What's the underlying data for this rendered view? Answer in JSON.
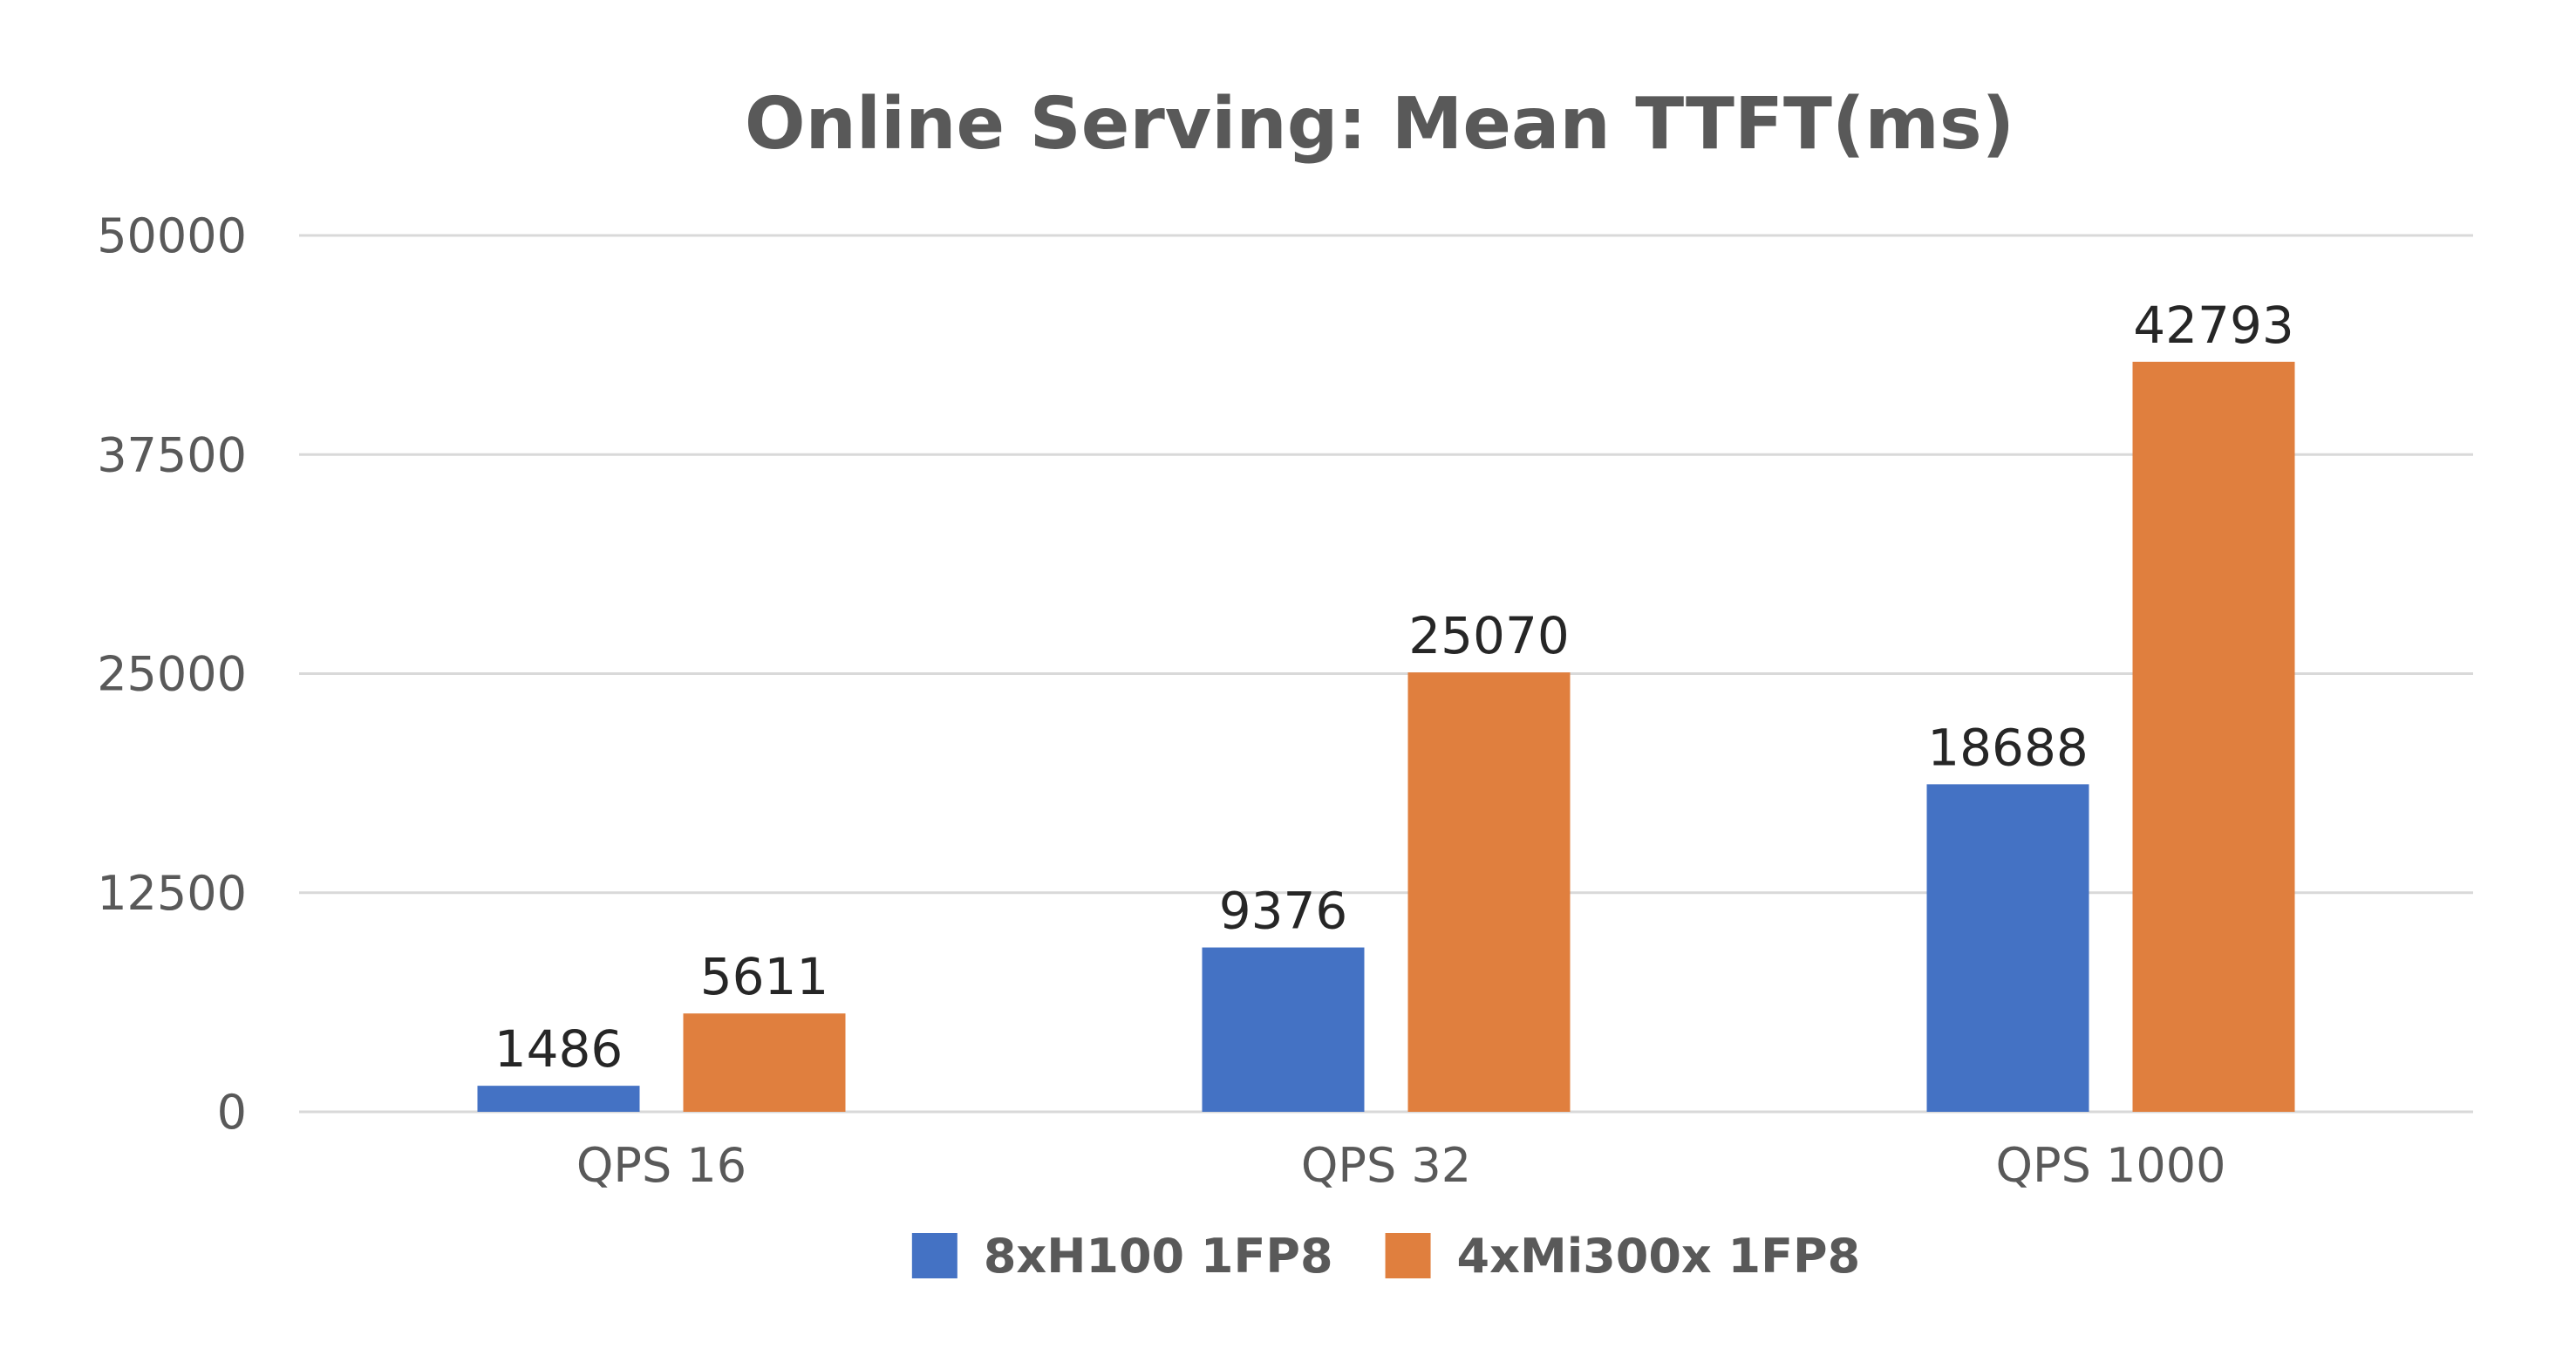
{
  "chart_data": {
    "type": "bar",
    "title": "Online Serving: Mean TTFT(ms)",
    "xlabel": "",
    "ylabel": "",
    "categories": [
      "QPS 16",
      "QPS 32",
      "QPS 1000"
    ],
    "series": [
      {
        "name": "8xH100 1FP8",
        "values": [
          1486,
          9376,
          18688
        ],
        "color": "#4472C4"
      },
      {
        "name": "4xMi300x 1FP8",
        "values": [
          5611,
          25070,
          42793
        ],
        "color": "#E07F3E"
      }
    ],
    "ylim": [
      0,
      50000
    ],
    "yticks": [
      0,
      12500,
      25000,
      37500,
      50000
    ],
    "grid": true,
    "data_labels": true,
    "legend_position": "bottom"
  }
}
